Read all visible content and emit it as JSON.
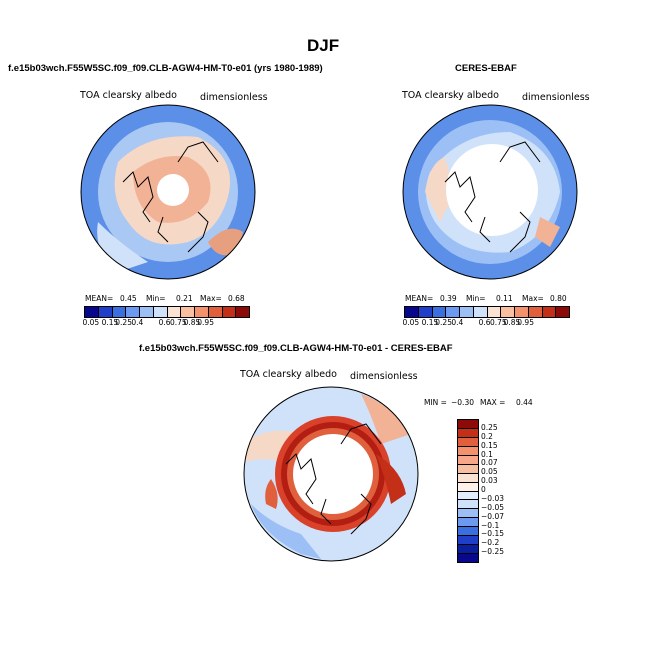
{
  "figure": {
    "title": "DJF"
  },
  "panels": [
    {
      "header": "f.e15b03wch.F55W5SC.f09_f09.CLB-AGW4-HM-T0-e01 (yrs 1980-1989)",
      "left_label": "TOA clearsky albedo",
      "right_label": "dimensionless",
      "stats": {
        "mean_label": "MEAN=",
        "mean": "0.45",
        "min_label": "Min=",
        "min": "0.21",
        "max_label": "Max=",
        "max": "0.68"
      }
    },
    {
      "header": "CERES-EBAF",
      "left_label": "TOA clearsky albedo",
      "right_label": "dimensionless",
      "stats": {
        "mean_label": "MEAN=",
        "mean": "0.39",
        "min_label": "Min=",
        "min": "0.11",
        "max_label": "Max=",
        "max": "0.80"
      }
    },
    {
      "header": "f.e15b03wch.F55W5SC.f09_f09.CLB-AGW4-HM-T0-e01 - CERES-EBAF",
      "left_label": "TOA clearsky albedo",
      "right_label": "dimensionless",
      "stats": {
        "min_label": "MIN =",
        "min": "−0.30",
        "max_label": "MAX =",
        "max": "0.44"
      }
    }
  ],
  "colorbar_albedo": {
    "labels": [
      "0.05",
      "0.15",
      "0.25",
      "0.4",
      "0.6",
      "0.75",
      "0.85",
      "0.95"
    ],
    "colors": [
      "#08088c",
      "#1f3fc8",
      "#3a6fe0",
      "#6b9af0",
      "#9cc0f6",
      "#cfe2fa",
      "#fbe3d3",
      "#f8c0a0",
      "#f3926c",
      "#e0603e",
      "#c42f18",
      "#8c0a08"
    ]
  },
  "colorbar_diff": {
    "labels": [
      "0.25",
      "0.2",
      "0.15",
      "0.1",
      "0.07",
      "0.05",
      "0.03",
      "0",
      "−0.03",
      "−0.05",
      "−0.07",
      "−0.1",
      "−0.15",
      "−0.2",
      "−0.25"
    ],
    "colors": [
      "#8c0a08",
      "#c42f18",
      "#e0603e",
      "#f3926c",
      "#f8a888",
      "#f8c0a0",
      "#fbe3d3",
      "#fdf1ea",
      "#e2eefb",
      "#cfe2fa",
      "#9cc0f6",
      "#6b9af0",
      "#3a6fe0",
      "#1f3fc8",
      "#0c1ea0",
      "#08088c"
    ]
  },
  "map_colors": {
    "ocean_blue": "#5b8fe8",
    "light_blue": "#a9c8f4",
    "pale": "#f6d8c6",
    "salmon": "#f2b296",
    "white": "#ffffff",
    "diff_red": "#d9412a",
    "diff_dark": "#b21e12"
  }
}
